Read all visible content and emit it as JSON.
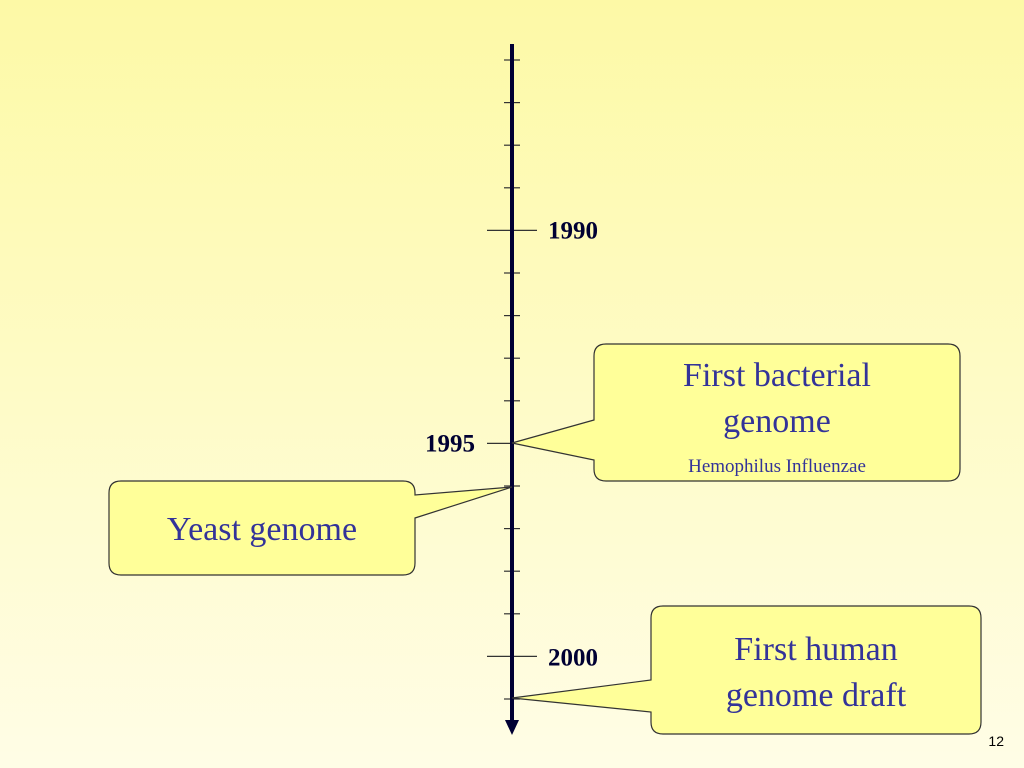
{
  "timeline": {
    "labels": [
      "1990",
      "1995",
      "2000"
    ]
  },
  "callouts": [
    {
      "lines": [
        "First bacterial",
        "genome"
      ],
      "note": "Hemophilus Influenzae"
    },
    {
      "lines": [
        "Yeast genome"
      ]
    },
    {
      "lines": [
        "First human",
        "genome draft"
      ]
    }
  ],
  "slide_number": "12"
}
